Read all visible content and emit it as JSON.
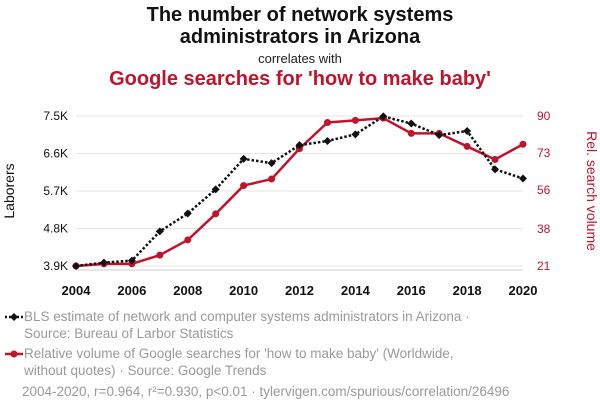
{
  "header": {
    "title_line1": "The number of network systems",
    "title_line2": "administrators in Arizona",
    "correlates_with": "correlates with",
    "title2": "Google searches for 'how to make baby'"
  },
  "colors": {
    "series1": "#111111",
    "series2": "#c0142c",
    "grid": "#e6e6e6"
  },
  "chart_data": {
    "type": "line",
    "x": [
      2004,
      2005,
      2006,
      2007,
      2008,
      2009,
      2010,
      2011,
      2012,
      2013,
      2014,
      2015,
      2016,
      2017,
      2018,
      2019,
      2020
    ],
    "xticks": [
      "2004",
      "2006",
      "2008",
      "2010",
      "2012",
      "2014",
      "2016",
      "2018",
      "2020"
    ],
    "left_axis": {
      "label": "Laborers",
      "ticks": [
        "3.9K",
        "4.8K",
        "5.7K",
        "6.6K",
        "7.5K"
      ],
      "tick_values": [
        3900,
        4800,
        5700,
        6600,
        7500
      ],
      "range": [
        3900,
        7500
      ]
    },
    "right_axis": {
      "label": "Rel. search volume",
      "ticks": [
        "21",
        "38",
        "56",
        "73",
        "90"
      ],
      "tick_values": [
        21,
        38,
        56,
        73,
        90
      ],
      "range": [
        21,
        90
      ]
    },
    "series": [
      {
        "name": "BLS estimate of network and computer systems administrators in Arizona",
        "axis": "left",
        "style": "dotted",
        "marker": "diamond",
        "values": [
          3900,
          3980,
          4030,
          4730,
          5160,
          5740,
          6470,
          6370,
          6800,
          6900,
          7060,
          7490,
          7320,
          7040,
          7140,
          6220,
          6000
        ]
      },
      {
        "name": "Relative volume of Google searches for 'how to make baby' (Worldwide, without quotes)",
        "axis": "right",
        "style": "solid",
        "marker": "circle",
        "values": [
          21,
          22,
          22,
          26,
          33,
          45,
          58,
          61,
          75,
          87,
          88,
          89,
          82,
          82,
          76,
          70,
          77
        ]
      }
    ]
  },
  "legend": {
    "item1_line1": "BLS estimate of network and computer systems administrators in Arizona ·",
    "item1_line2": "Source: Bureau of Larbor Statistics",
    "item2_line1": "Relative volume of Google searches for 'how to make baby' (Worldwide,",
    "item2_line2": "without quotes) · Source: Google Trends"
  },
  "footer": {
    "stats": "2004-2020, r=0.964, r²=0.930, p<0.01 · tylervigen.com/spurious/correlation/26496"
  }
}
